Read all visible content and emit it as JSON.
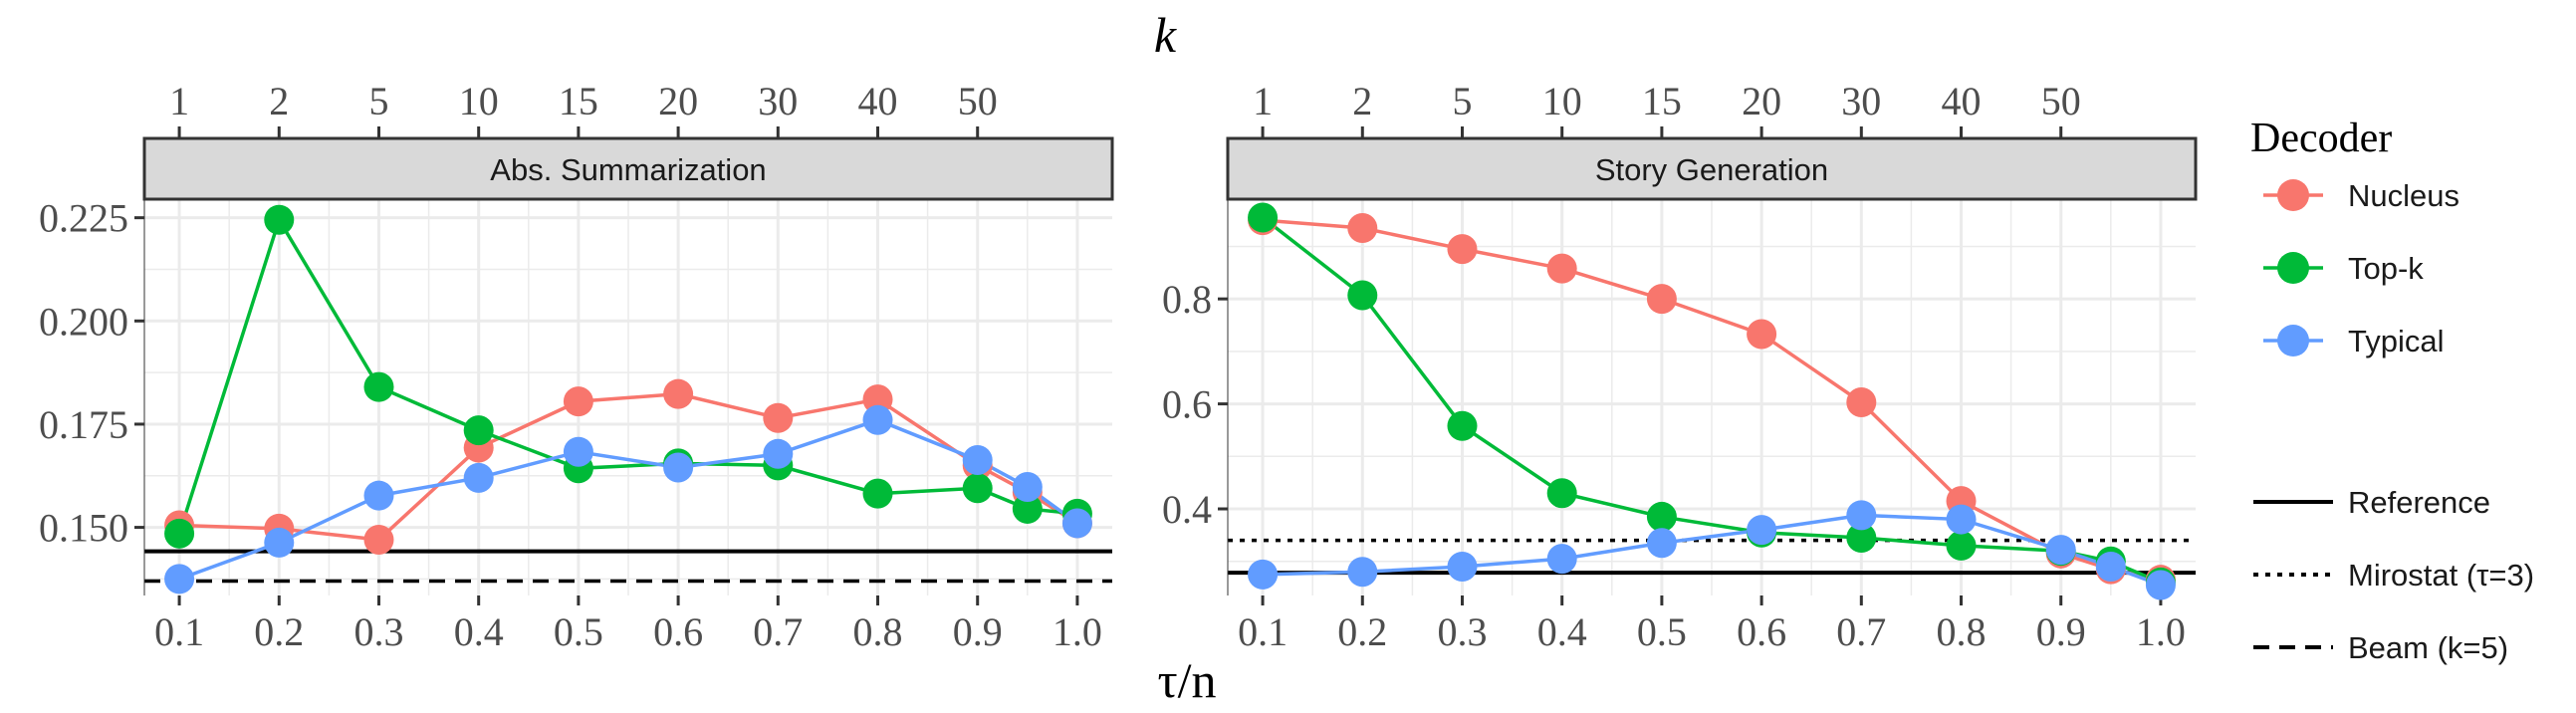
{
  "chart_data": [
    {
      "type": "line",
      "title": "Abs. Summarization",
      "x": [
        0.1,
        0.2,
        0.3,
        0.4,
        0.5,
        0.6,
        0.7,
        0.8,
        0.9,
        0.95,
        1.0
      ],
      "x_tick_labels": [
        "0.1",
        "0.2",
        "0.3",
        "0.4",
        "0.5",
        "0.6",
        "0.7",
        "0.8",
        "0.9",
        "1.0"
      ],
      "top_tick_labels": [
        "1",
        "2",
        "5",
        "10",
        "15",
        "20",
        "30",
        "40",
        "50"
      ],
      "y_tick_labels": [
        "0.150",
        "0.175",
        "0.200",
        "0.225"
      ],
      "y_ticks": [
        0.15,
        0.175,
        0.2,
        0.225
      ],
      "ylim": [
        0.1335,
        0.2295
      ],
      "xlim": [
        0.065,
        1.035
      ],
      "series": [
        {
          "name": "Nucleus",
          "x": [
            0.1,
            0.2,
            0.3,
            0.4,
            0.5,
            0.6,
            0.7,
            0.8,
            0.9,
            0.95,
            1.0
          ],
          "values": [
            0.1505,
            0.1497,
            0.147,
            0.1693,
            0.1805,
            0.1823,
            0.1765,
            0.181,
            0.165,
            0.1585,
            0.151
          ]
        },
        {
          "name": "Top-k",
          "x": [
            0.1,
            0.2,
            0.3,
            0.4,
            0.5,
            0.6,
            0.7,
            0.8,
            0.9,
            0.95,
            1.0
          ],
          "values": [
            0.1485,
            0.2245,
            0.184,
            0.1735,
            0.1643,
            0.1655,
            0.165,
            0.1582,
            0.1595,
            0.1545,
            0.1533
          ]
        },
        {
          "name": "Typical",
          "x": [
            0.1,
            0.2,
            0.3,
            0.4,
            0.5,
            0.6,
            0.7,
            0.8,
            0.9,
            0.95,
            1.0
          ],
          "values": [
            0.1375,
            0.1463,
            0.1577,
            0.162,
            0.1683,
            0.1645,
            0.1678,
            0.176,
            0.1663,
            0.1598,
            0.151
          ]
        }
      ],
      "reference_lines": {
        "Reference": 0.1442,
        "Beam (k=5)": 0.137
      }
    },
    {
      "type": "line",
      "title": "Story Generation",
      "x": [
        0.1,
        0.2,
        0.3,
        0.4,
        0.5,
        0.6,
        0.7,
        0.8,
        0.9,
        0.95,
        1.0
      ],
      "x_tick_labels": [
        "0.1",
        "0.2",
        "0.3",
        "0.4",
        "0.5",
        "0.6",
        "0.7",
        "0.8",
        "0.9",
        "1.0"
      ],
      "top_tick_labels": [
        "1",
        "2",
        "5",
        "10",
        "15",
        "20",
        "30",
        "40",
        "50"
      ],
      "y_tick_labels": [
        "0.4",
        "0.6",
        "0.8"
      ],
      "y_ticks": [
        0.4,
        0.6,
        0.8
      ],
      "ylim": [
        0.235,
        0.99
      ],
      "xlim": [
        0.065,
        1.035
      ],
      "series": [
        {
          "name": "Nucleus",
          "x": [
            0.1,
            0.2,
            0.3,
            0.4,
            0.5,
            0.6,
            0.7,
            0.8,
            0.9,
            0.95,
            1.0
          ],
          "values": [
            0.95,
            0.935,
            0.895,
            0.858,
            0.8,
            0.733,
            0.603,
            0.415,
            0.315,
            0.285,
            0.265
          ]
        },
        {
          "name": "Top-k",
          "x": [
            0.1,
            0.2,
            0.3,
            0.4,
            0.5,
            0.6,
            0.7,
            0.8,
            0.9,
            0.95,
            1.0
          ],
          "values": [
            0.955,
            0.807,
            0.558,
            0.43,
            0.385,
            0.355,
            0.345,
            0.33,
            0.32,
            0.3,
            0.26
          ]
        },
        {
          "name": "Typical",
          "x": [
            0.1,
            0.2,
            0.3,
            0.4,
            0.5,
            0.6,
            0.7,
            0.8,
            0.9,
            0.95,
            1.0
          ],
          "values": [
            0.275,
            0.28,
            0.29,
            0.305,
            0.335,
            0.36,
            0.388,
            0.38,
            0.322,
            0.29,
            0.255
          ]
        }
      ],
      "reference_lines": {
        "Reference": 0.2785,
        "Mirostat (τ=3)": 0.34
      }
    }
  ],
  "axes": {
    "top_title": "k",
    "bottom_title": "τ/n"
  },
  "legend": {
    "title": "Decoder",
    "decoders": [
      {
        "label": "Nucleus",
        "color": "#F8766D"
      },
      {
        "label": "Top-k",
        "color": "#00BA38"
      },
      {
        "label": "Typical",
        "color": "#619CFF"
      }
    ],
    "lines": [
      {
        "label": "Reference",
        "style": "solid"
      },
      {
        "label": "Mirostat (τ=3)",
        "style": "dotted"
      },
      {
        "label": "Beam (k=5)",
        "style": "dashed"
      }
    ]
  },
  "colors": {
    "Nucleus": "#F8766D",
    "Top-k": "#00BA38",
    "Typical": "#619CFF",
    "strip_bg": "#D9D9D9",
    "grid": "#EBEBEB"
  }
}
